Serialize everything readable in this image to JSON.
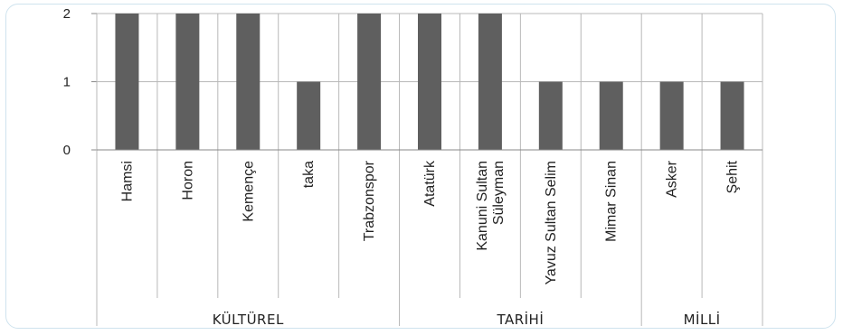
{
  "chart_data": {
    "type": "bar",
    "title": "",
    "xlabel": "",
    "ylabel": "",
    "ylim": [
      0,
      2
    ],
    "y_ticks": [
      "0",
      "1",
      "2"
    ],
    "grid": true,
    "legend": "none",
    "bar_color": "#5f5f5f",
    "categories": [
      {
        "label": [
          "Hamsi"
        ],
        "group": "KÜLTÜREL",
        "value": 2
      },
      {
        "label": [
          "Horon"
        ],
        "group": "KÜLTÜREL",
        "value": 2
      },
      {
        "label": [
          "Kemençe"
        ],
        "group": "KÜLTÜREL",
        "value": 2
      },
      {
        "label": [
          "taka"
        ],
        "group": "KÜLTÜREL",
        "value": 1
      },
      {
        "label": [
          "Trabzonspor"
        ],
        "group": "KÜLTÜREL",
        "value": 2
      },
      {
        "label": [
          "Atatürk"
        ],
        "group": "TARİHİ",
        "value": 2
      },
      {
        "label": [
          "Kanuni Sultan",
          "Süleyman"
        ],
        "group": "TARİHİ",
        "value": 2
      },
      {
        "label": [
          "Yavuz Sultan Selim"
        ],
        "group": "TARİHİ",
        "value": 1
      },
      {
        "label": [
          "Mimar Sinan"
        ],
        "group": "TARİHİ",
        "value": 1
      },
      {
        "label": [
          "Asker"
        ],
        "group": "MİLLİ",
        "value": 1
      },
      {
        "label": [
          "Şehit"
        ],
        "group": "MİLLİ",
        "value": 1
      }
    ],
    "groups": [
      {
        "label": "KÜLTÜREL",
        "count": 5
      },
      {
        "label": "TARİHİ",
        "count": 4
      },
      {
        "label": "MİLLİ",
        "count": 2
      }
    ]
  }
}
